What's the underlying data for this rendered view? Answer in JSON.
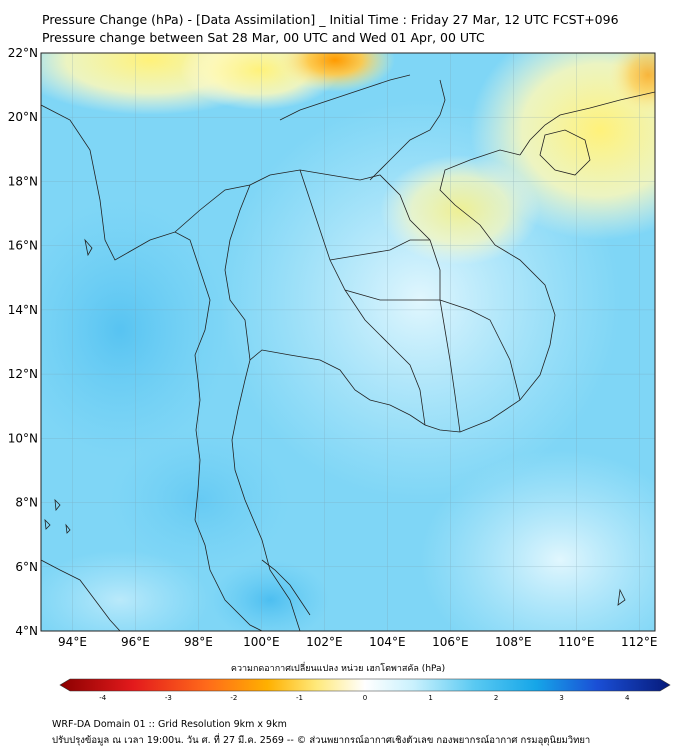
{
  "header": {
    "title": "Pressure Change (hPa) - [Data Assimilation] _ Initial Time : Friday 27 Mar, 12 UTC FCST+096",
    "subtitle": "Pressure change between Sat 28 Mar, 00 UTC and Wed 01 Apr, 00 UTC"
  },
  "map": {
    "lat_range": [
      4,
      22
    ],
    "lon_range": [
      93,
      112.5
    ],
    "lat_ticks": [
      "4°N",
      "6°N",
      "8°N",
      "10°N",
      "12°N",
      "14°N",
      "16°N",
      "18°N",
      "20°N",
      "22°N"
    ],
    "lon_ticks": [
      "94°E",
      "96°E",
      "98°E",
      "100°E",
      "102°E",
      "104°E",
      "106°E",
      "108°E",
      "110°E",
      "112°E"
    ],
    "field": "pressure change (hPa)",
    "colors": {
      "ocean_light_blue": "#7fd6f6",
      "land_pale_cyan": "#a8e6f8",
      "positive_yellow": "#fff59a",
      "positive_orange": "#ffb347",
      "strong_blue": "#4fc0f0"
    }
  },
  "colorbar": {
    "label": "ความกดอากาศเปลี่ยนแปลง หน่วย เฮกโตพาสคัล (hPa)",
    "ticks": [
      "-4",
      "-3",
      "-2",
      "-1",
      "0",
      "1",
      "2",
      "3",
      "4"
    ],
    "range": [
      -4.5,
      4.5
    ]
  },
  "footer": {
    "line1": "WRF-DA Domain 01 :: Grid Resolution 9km x 9km",
    "line2": "ปรับปรุงข้อมูล ณ เวลา 19:00น. วัน ศ. ที่ 27 มี.ค. 2569 -- © ส่วนพยากรณ์อากาศเชิงตัวเลข กองพยากรณ์อากาศ กรมอุตุนิยมวิทยา"
  }
}
